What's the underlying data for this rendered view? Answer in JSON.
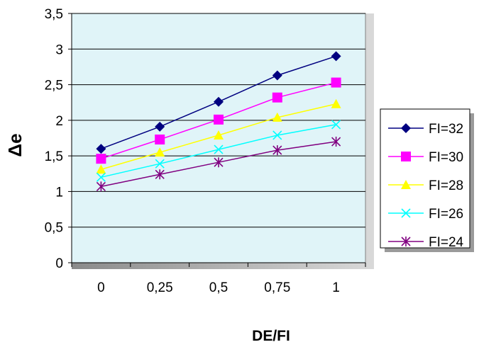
{
  "chart_data": {
    "type": "line",
    "x": [
      "0",
      "0,25",
      "0,5",
      "0,75",
      "1"
    ],
    "xlabel": "DE/FI",
    "ylabel": "Δe",
    "ylim": [
      0,
      3.5
    ],
    "yticks": [
      "0",
      "0,5",
      "1",
      "1,5",
      "2",
      "2,5",
      "3",
      "3,5"
    ],
    "grid": "horizontal",
    "legend": "right",
    "series": [
      {
        "name": "FI=32",
        "values": [
          1.6,
          1.91,
          2.26,
          2.63,
          2.9
        ],
        "color": "#000080",
        "marker": "diamond"
      },
      {
        "name": "FI=30",
        "values": [
          1.46,
          1.73,
          2.01,
          2.32,
          2.53
        ],
        "color": "#ff00ff",
        "marker": "square"
      },
      {
        "name": "FI=28",
        "values": [
          1.31,
          1.55,
          1.79,
          2.04,
          2.23
        ],
        "color": "#ffff00",
        "marker": "triangle"
      },
      {
        "name": "FI=26",
        "values": [
          1.2,
          1.39,
          1.59,
          1.79,
          1.94
        ],
        "color": "#00ffff",
        "marker": "x"
      },
      {
        "name": "FI=24",
        "values": [
          1.07,
          1.24,
          1.41,
          1.58,
          1.7
        ],
        "color": "#800080",
        "marker": "star"
      }
    ]
  }
}
